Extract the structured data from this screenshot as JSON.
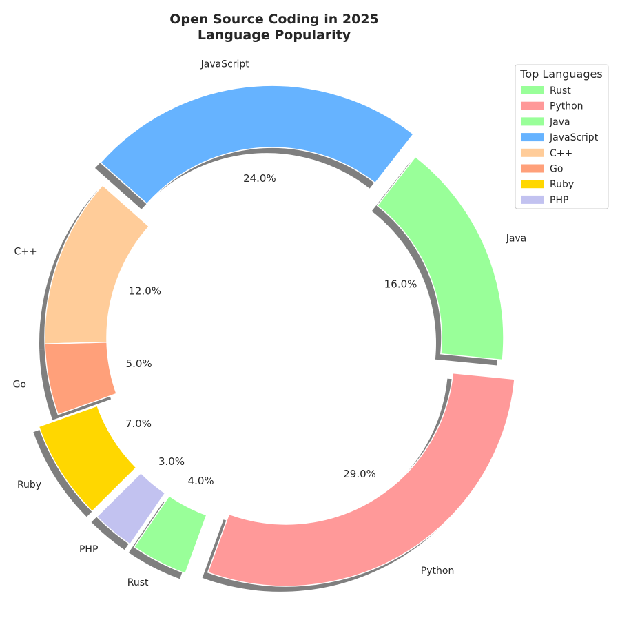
{
  "chart_data": {
    "type": "pie",
    "variant": "donut",
    "title_lines": [
      "Open Source Coding in 2025",
      "Language Popularity"
    ],
    "categories": [
      "Python",
      "Java",
      "JavaScript",
      "C++",
      "Go",
      "Ruby",
      "PHP",
      "Rust"
    ],
    "values": [
      29.0,
      16.0,
      24.0,
      12.0,
      5.0,
      7.0,
      3.0,
      4.0
    ],
    "labels_pct": [
      "29.0%",
      "16.0%",
      "24.0%",
      "12.0%",
      "5.0%",
      "7.0%",
      "3.0%",
      "4.0%"
    ],
    "colors": [
      "#ff9999",
      "#99ff99",
      "#66b3ff",
      "#ffcc99",
      "#ffa07a",
      "#ffd700",
      "#c2c2f0",
      "#99ff99"
    ],
    "exploded": [
      true,
      false,
      true,
      false,
      false,
      true,
      true,
      true
    ],
    "shadow": true,
    "legend": {
      "title": "Top Languages",
      "position": "upper-right",
      "entries": [
        "Rust",
        "Python",
        "Java",
        "JavaScript",
        "C++",
        "Go",
        "Ruby",
        "PHP"
      ],
      "colors": [
        "#99ff99",
        "#ff9999",
        "#99ff99",
        "#66b3ff",
        "#ffcc99",
        "#ffa07a",
        "#ffd700",
        "#c2c2f0"
      ]
    }
  }
}
